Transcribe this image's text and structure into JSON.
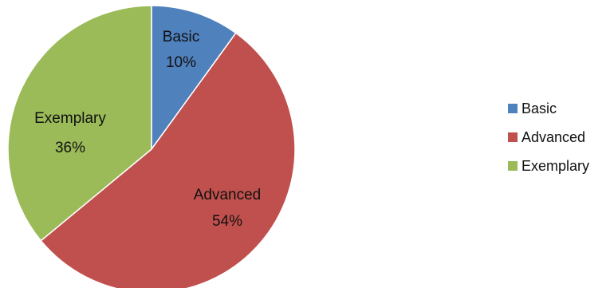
{
  "chart_data": {
    "type": "pie",
    "title": "",
    "categories": [
      "Basic",
      "Advanced",
      "Exemplary"
    ],
    "values": [
      10,
      54,
      36
    ],
    "labels": [
      "10%",
      "54%",
      "36%"
    ],
    "colors": [
      "#4f81bd",
      "#c0504d",
      "#9bbb59"
    ],
    "start": "12 o'clock",
    "direction": "clockwise",
    "legend": {
      "position": "right",
      "entries": [
        "Basic",
        "Advanced",
        "Exemplary"
      ]
    }
  }
}
